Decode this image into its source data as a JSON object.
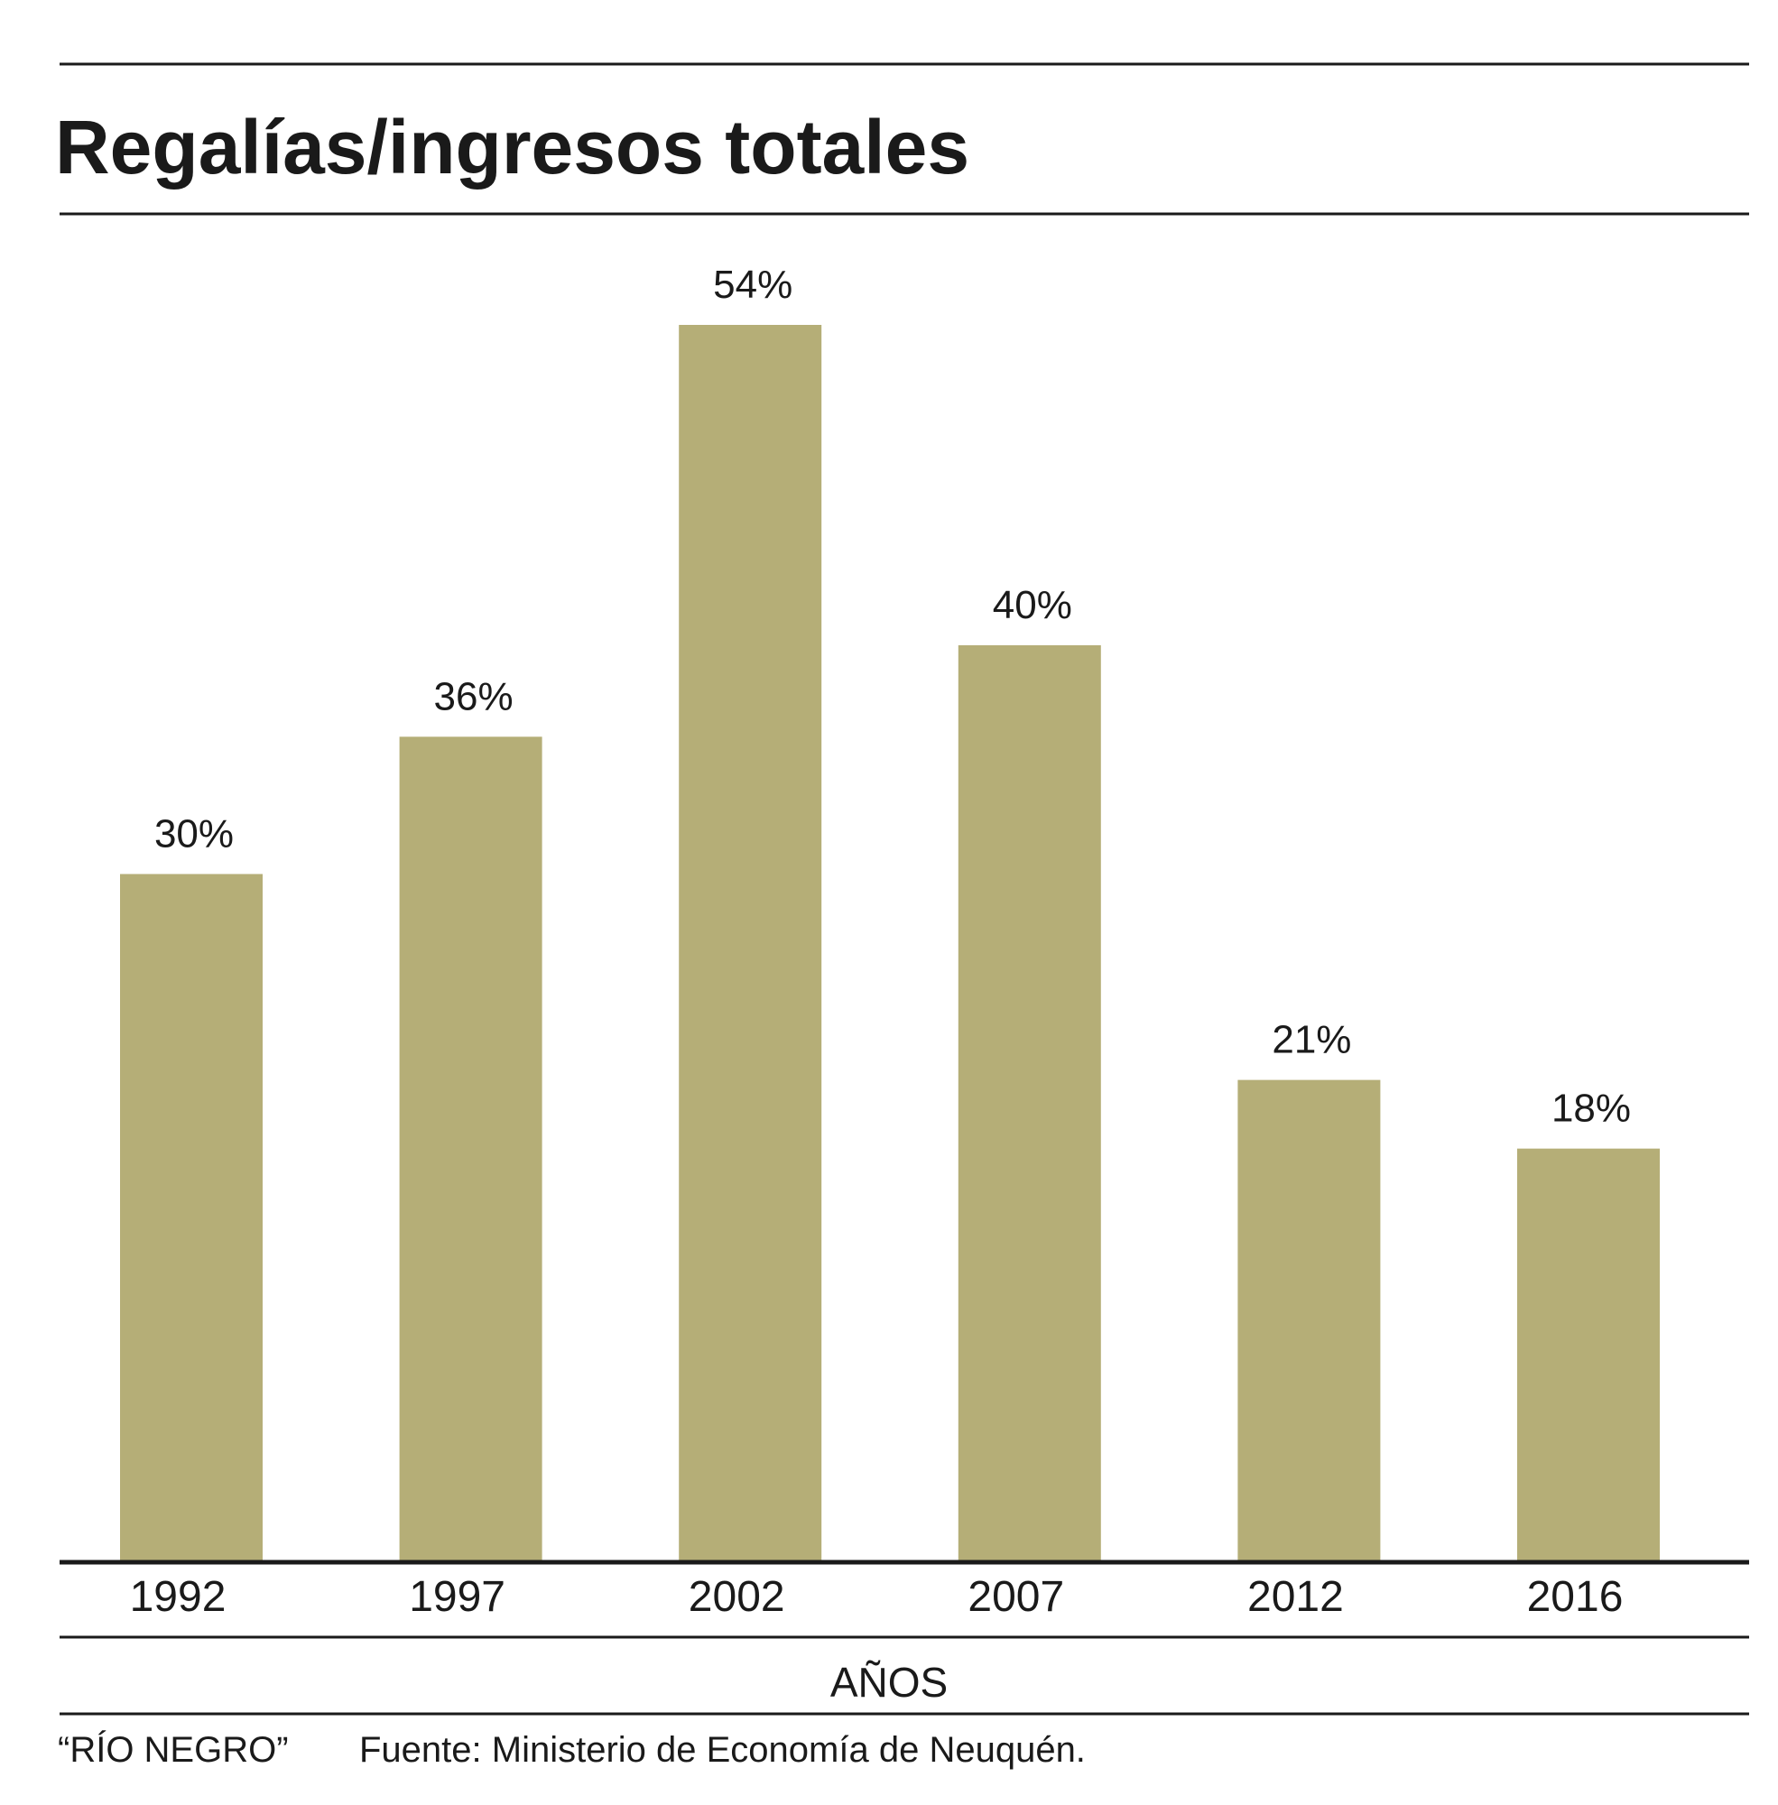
{
  "chart_data": {
    "type": "bar",
    "title": "Regalías/ingresos totales",
    "categories": [
      "1992",
      "1997",
      "2002",
      "2007",
      "2012",
      "2016"
    ],
    "values": [
      30,
      36,
      54,
      40,
      21,
      18
    ],
    "value_labels": [
      "30%",
      "36%",
      "54%",
      "40%",
      "21%",
      "18%"
    ],
    "xlabel": "AÑOS",
    "ylabel": "",
    "ylim": [
      0,
      54
    ],
    "grid": false,
    "bar_color": "#b5ae77"
  },
  "footer": {
    "credit": "“RÍO NEGRO”",
    "source": "Fuente: Ministerio de Economía de Neuquén."
  }
}
